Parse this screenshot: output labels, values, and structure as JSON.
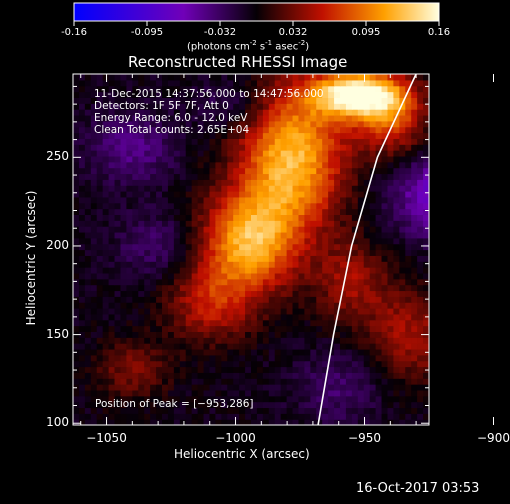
{
  "colorbar": {
    "tick_labels": [
      "-0.16",
      "-0.095",
      "-0.032",
      "0.032",
      "0.095",
      "0.16"
    ],
    "units_text": "(photons cm",
    "units_sup1": "-2",
    "units_mid": " s",
    "units_sup2": "-1",
    "units_end": " asec",
    "units_sup3": "-2",
    "units_close": ")",
    "range": [
      -0.16,
      0.16
    ]
  },
  "chart_data": {
    "type": "heatmap",
    "title": "Reconstructed RHESSI Image",
    "xlabel": "Heliocentric X (arcsec)",
    "ylabel": "Heliocentric Y (arcsec)",
    "xlim": [
      -1063,
      -925
    ],
    "ylim": [
      99,
      297
    ],
    "x_ticks": [
      -1050,
      -1000,
      -950,
      -900
    ],
    "x_tick_labels": [
      "−1050",
      "−1000",
      "−950",
      "−900"
    ],
    "y_ticks": [
      100,
      150,
      200,
      250
    ],
    "y_tick_labels": [
      "100",
      "150",
      "200",
      "250"
    ],
    "grid": false,
    "annotations": {
      "time_range": "11-Dec-2015 14:37:56.000 to 14:47:56.000",
      "detectors": "Detectors: 1F 5F 7F, Att 0",
      "energy": "Energy Range: 6.0 - 12.0 keV",
      "clean": "Clean     Total counts: 2.65E+04",
      "peak": "Position of Peak = [−953,286]"
    },
    "peak_position": [
      -953,
      286
    ],
    "blobs": [
      {
        "x": -953,
        "y": 286,
        "amp": 0.17,
        "sx": 12,
        "sy": 9
      },
      {
        "x": -978,
        "y": 250,
        "amp": 0.13,
        "sx": 14,
        "sy": 28
      },
      {
        "x": -995,
        "y": 203,
        "amp": 0.12,
        "sx": 13,
        "sy": 20
      },
      {
        "x": -1010,
        "y": 168,
        "amp": 0.06,
        "sx": 12,
        "sy": 16
      },
      {
        "x": -940,
        "y": 272,
        "amp": 0.08,
        "sx": 10,
        "sy": 14
      },
      {
        "x": -955,
        "y": 180,
        "amp": 0.05,
        "sx": 10,
        "sy": 16
      },
      {
        "x": -935,
        "y": 150,
        "amp": 0.05,
        "sx": 10,
        "sy": 18
      },
      {
        "x": -905,
        "y": 145,
        "amp": 0.06,
        "sx": 12,
        "sy": 18
      },
      {
        "x": -1040,
        "y": 130,
        "amp": 0.04,
        "sx": 10,
        "sy": 12
      },
      {
        "x": -1040,
        "y": 255,
        "amp": -0.04,
        "sx": 12,
        "sy": 14
      },
      {
        "x": -1000,
        "y": 280,
        "amp": -0.03,
        "sx": 10,
        "sy": 10
      },
      {
        "x": -918,
        "y": 228,
        "amp": -0.08,
        "sx": 14,
        "sy": 16
      },
      {
        "x": -898,
        "y": 252,
        "amp": -0.07,
        "sx": 10,
        "sy": 10
      },
      {
        "x": -1030,
        "y": 200,
        "amp": -0.03,
        "sx": 12,
        "sy": 14
      },
      {
        "x": -960,
        "y": 120,
        "amp": -0.03,
        "sx": 12,
        "sy": 14
      }
    ],
    "limb_curve": [
      [
        -968,
        99
      ],
      [
        -962,
        150
      ],
      [
        -955,
        200
      ],
      [
        -945,
        250
      ],
      [
        -930,
        297
      ]
    ]
  },
  "footer": {
    "timestamp": "16-Oct-2017 03:53"
  }
}
